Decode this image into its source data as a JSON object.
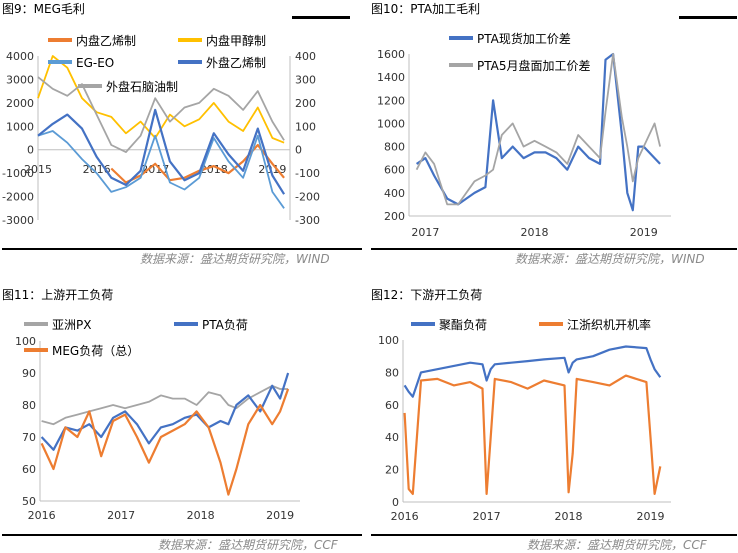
{
  "charts": [
    {
      "title": "图9：MEG毛利",
      "source": "数据来源：盛达期货研究院，WIND",
      "chart_data": {
        "type": "line",
        "x_ticks": [
          "2015",
          "2016",
          "2017",
          "2018",
          "2019"
        ],
        "y_left": {
          "ticks": [
            "4000",
            "3000",
            "2000",
            "1000",
            "0",
            "-1000",
            "-2000",
            "-3000"
          ],
          "range": [
            -3000,
            4000
          ]
        },
        "y_right": {
          "ticks": [
            "400",
            "300",
            "200",
            "100",
            "0",
            "-100",
            "-200",
            "-300"
          ],
          "range": [
            -300,
            400
          ]
        },
        "x": [
          2015.0,
          2015.25,
          2015.5,
          2015.75,
          2016.0,
          2016.25,
          2016.5,
          2016.75,
          2017.0,
          2017.25,
          2017.5,
          2017.75,
          2018.0,
          2018.25,
          2018.5,
          2018.75,
          2019.0,
          2019.2
        ],
        "series": [
          {
            "name": "内盘乙烯制",
            "axis": "left",
            "color": "#ED7D31",
            "values": [
              null,
              null,
              null,
              null,
              null,
              -800,
              -1400,
              -1100,
              -600,
              -1300,
              -1200,
              -900,
              -700,
              -1000,
              -500,
              200,
              -600,
              -1200
            ]
          },
          {
            "name": "内盘甲醇制",
            "axis": "left",
            "color": "#FFC000",
            "values": [
              2200,
              4000,
              3500,
              2200,
              1600,
              1400,
              700,
              1200,
              500,
              1500,
              1000,
              1300,
              2000,
              1200,
              800,
              1800,
              500,
              300
            ]
          },
          {
            "name": "EG-EO",
            "axis": "right",
            "color": "#5B9BD5",
            "values": [
              60,
              80,
              30,
              -40,
              -100,
              -180,
              -160,
              -120,
              60,
              -140,
              -170,
              -120,
              50,
              -50,
              -120,
              60,
              -180,
              -250
            ]
          },
          {
            "name": "外盘乙烯制",
            "axis": "left",
            "color": "#4472C4",
            "values": [
              600,
              1100,
              1500,
              900,
              -300,
              -1200,
              -1500,
              -900,
              1700,
              -500,
              -1300,
              -1000,
              700,
              -200,
              -900,
              900,
              -1100,
              -1900
            ]
          },
          {
            "name": "外盘石脑油制",
            "axis": "right",
            "color": "#A5A5A5",
            "values": [
              310,
              260,
              230,
              280,
              150,
              20,
              -10,
              60,
              220,
              120,
              180,
              200,
              260,
              230,
              170,
              250,
              120,
              40
            ]
          }
        ]
      }
    },
    {
      "title": "图10：PTA加工毛利",
      "source": "数据来源：盛达期货研究院，WIND",
      "chart_data": {
        "type": "line",
        "x_ticks": [
          "2017",
          "2018",
          "2019"
        ],
        "y_left": {
          "ticks": [
            "1600",
            "1400",
            "1200",
            "1000",
            "800",
            "600",
            "400",
            "200"
          ],
          "range": [
            200,
            1600
          ]
        },
        "x": [
          2016.92,
          2017.0,
          2017.08,
          2017.2,
          2017.3,
          2017.45,
          2017.55,
          2017.62,
          2017.7,
          2017.8,
          2017.9,
          2018.0,
          2018.1,
          2018.2,
          2018.3,
          2018.4,
          2018.5,
          2018.6,
          2018.65,
          2018.72,
          2018.8,
          2018.85,
          2018.9,
          2018.95,
          2019.0,
          2019.1,
          2019.15
        ],
        "series": [
          {
            "name": "PTA现货加工价差",
            "color": "#4472C4",
            "values": [
              650,
              700,
              550,
              350,
              300,
              400,
              450,
              1200,
              700,
              800,
              700,
              750,
              750,
              700,
              600,
              800,
              700,
              650,
              1550,
              1600,
              900,
              400,
              250,
              800,
              800,
              700,
              650
            ]
          },
          {
            "name": "PTA5月盘面加工价差",
            "color": "#A5A5A5",
            "values": [
              600,
              750,
              650,
              300,
              300,
              500,
              550,
              600,
              900,
              1000,
              800,
              850,
              800,
              750,
              650,
              900,
              800,
              700,
              1100,
              1600,
              1050,
              800,
              500,
              700,
              800,
              1000,
              800
            ]
          }
        ]
      }
    },
    {
      "title": "图11：上游开工负荷",
      "source": "数据来源：盛达期货研究院，CCF",
      "chart_data": {
        "type": "line",
        "x_ticks": [
          "2016",
          "2017",
          "2018",
          "2019"
        ],
        "y_left": {
          "ticks": [
            "100",
            "90",
            "80",
            "70",
            "60",
            "50"
          ],
          "range": [
            50,
            100
          ]
        },
        "x": [
          2016.0,
          2016.15,
          2016.3,
          2016.45,
          2016.6,
          2016.75,
          2016.9,
          2017.05,
          2017.2,
          2017.35,
          2017.5,
          2017.65,
          2017.8,
          2017.95,
          2018.1,
          2018.25,
          2018.35,
          2018.45,
          2018.6,
          2018.75,
          2018.9,
          2019.0,
          2019.1
        ],
        "series": [
          {
            "name": "亚洲PX",
            "color": "#A5A5A5",
            "values": [
              75,
              74,
              76,
              77,
              78,
              79,
              80,
              79,
              80,
              81,
              83,
              82,
              82,
              80,
              84,
              83,
              80,
              79,
              82,
              84,
              86,
              85,
              85
            ]
          },
          {
            "name": "PTA负荷",
            "color": "#4472C4",
            "values": [
              70,
              66,
              73,
              72,
              74,
              70,
              76,
              78,
              74,
              68,
              73,
              74,
              76,
              77,
              73,
              75,
              74,
              80,
              83,
              78,
              86,
              82,
              90
            ]
          },
          {
            "name": "MEG负荷（总）",
            "color": "#ED7D31",
            "values": [
              68,
              60,
              73,
              70,
              78,
              64,
              75,
              77,
              70,
              62,
              70,
              72,
              74,
              78,
              73,
              62,
              52,
              60,
              74,
              80,
              74,
              78,
              85
            ]
          }
        ]
      }
    },
    {
      "title": "图12：下游开工负荷",
      "source": "数据来源：盛达期货研究院，CCF",
      "chart_data": {
        "type": "line",
        "x_ticks": [
          "2016",
          "2017",
          "2018",
          "2019"
        ],
        "y_left": {
          "ticks": [
            "100",
            "80",
            "60",
            "40",
            "20",
            "0"
          ],
          "range": [
            0,
            100
          ]
        },
        "x": [
          2016.0,
          2016.05,
          2016.1,
          2016.2,
          2016.4,
          2016.6,
          2016.8,
          2016.95,
          2017.0,
          2017.05,
          2017.1,
          2017.3,
          2017.5,
          2017.7,
          2017.95,
          2018.0,
          2018.05,
          2018.1,
          2018.3,
          2018.5,
          2018.7,
          2018.95,
          2019.0,
          2019.05,
          2019.12
        ],
        "series": [
          {
            "name": "聚酯负荷",
            "color": "#4472C4",
            "values": [
              72,
              68,
              65,
              80,
              82,
              84,
              86,
              85,
              75,
              82,
              85,
              86,
              87,
              88,
              89,
              80,
              86,
              88,
              90,
              94,
              96,
              95,
              88,
              82,
              77
            ]
          },
          {
            "name": "江浙织机开机率",
            "color": "#ED7D31",
            "values": [
              55,
              8,
              5,
              75,
              76,
              72,
              74,
              70,
              5,
              40,
              76,
              74,
              70,
              75,
              72,
              6,
              30,
              76,
              74,
              72,
              78,
              74,
              40,
              5,
              22
            ]
          }
        ]
      }
    }
  ]
}
